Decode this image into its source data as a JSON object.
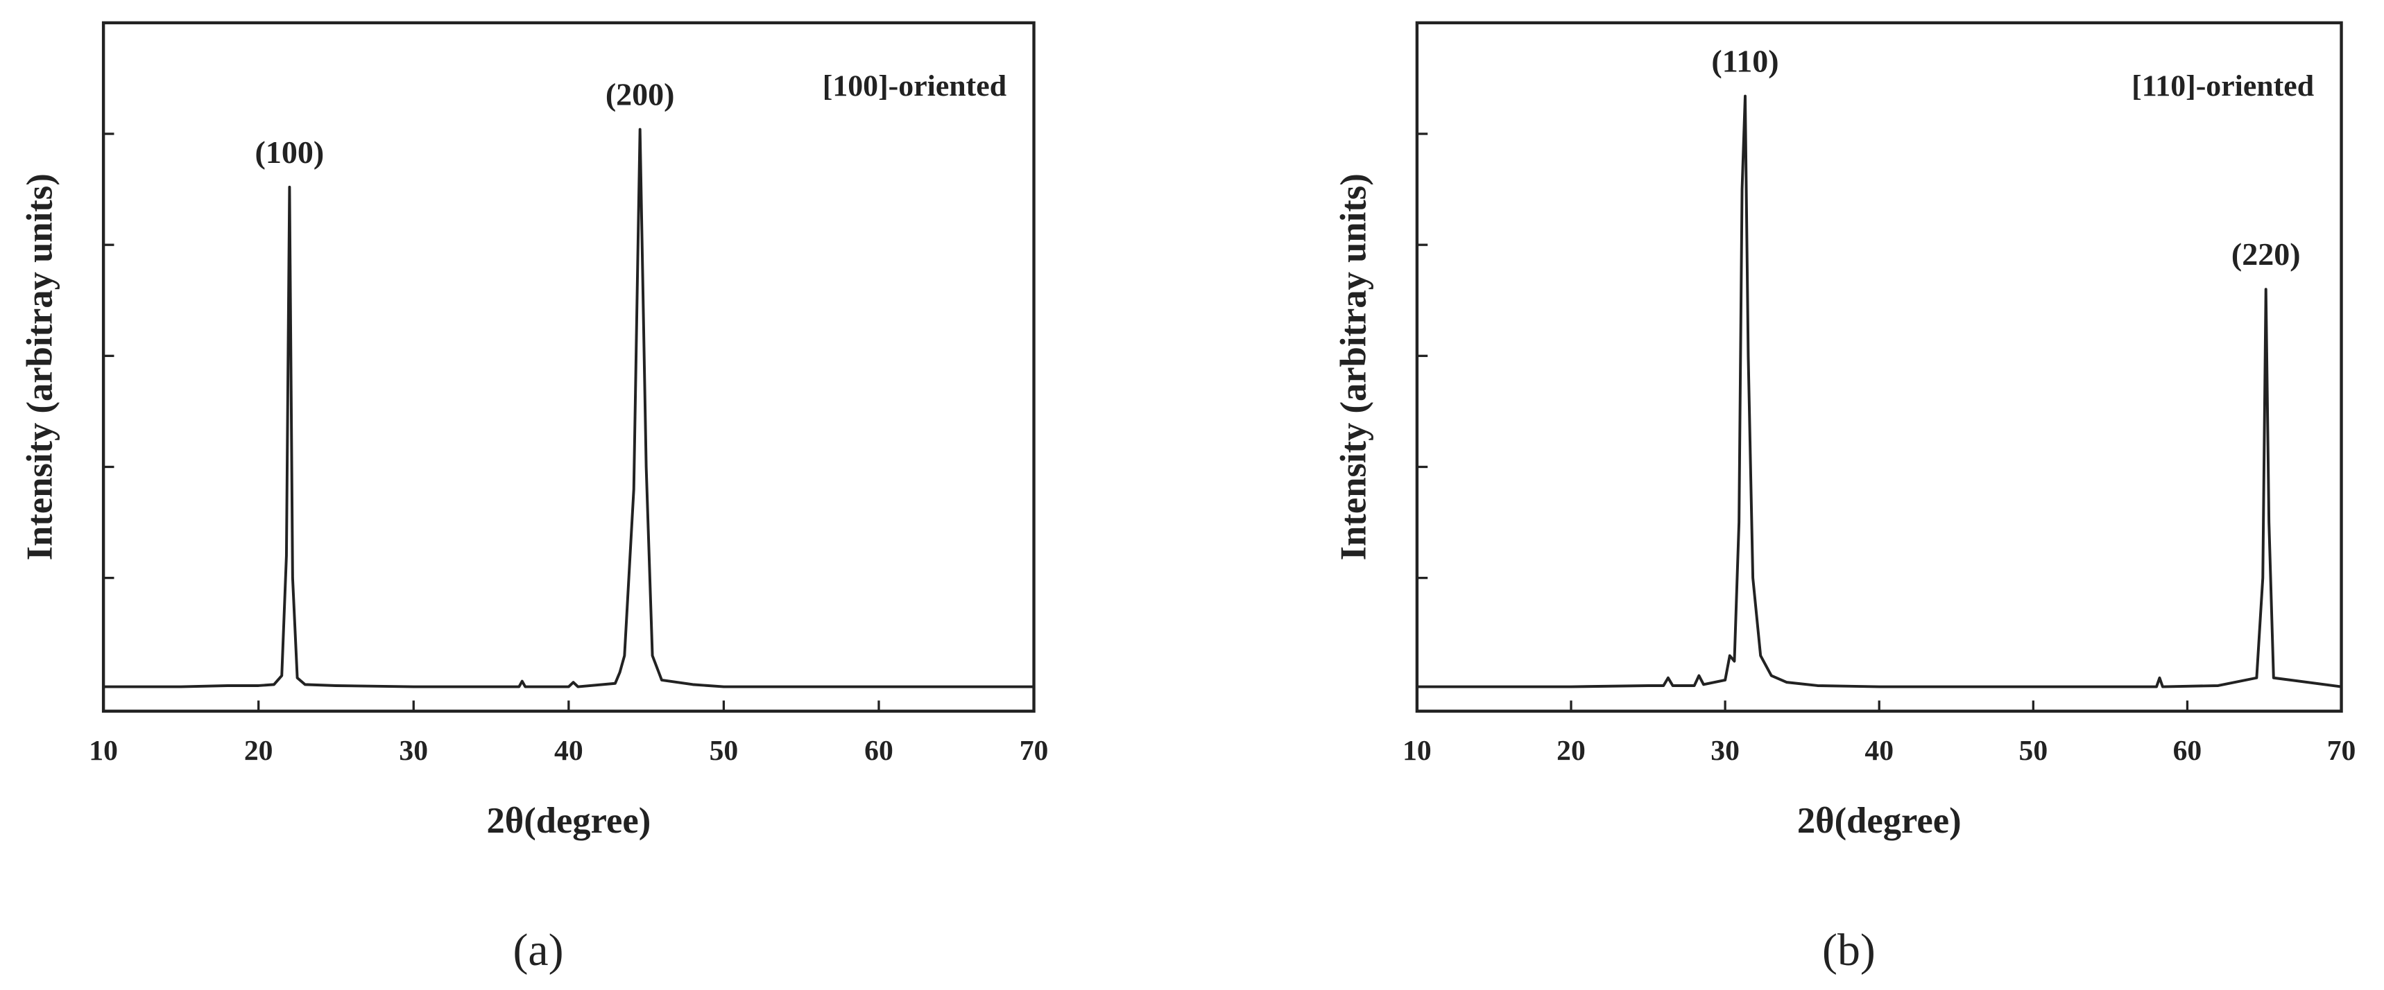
{
  "chart_data": [
    {
      "type": "line",
      "panel": "(a)",
      "note": "[100]-oriented",
      "note_corner": "upper right",
      "xlabel": "2θ(degree)",
      "ylabel": "Intensity (arbitray units)",
      "color": "#222222",
      "xlim": [
        10,
        70
      ],
      "xticks": [
        10,
        20,
        30,
        40,
        50,
        60,
        70
      ],
      "ylim": [
        -0.2,
        6
      ],
      "yticks": [
        1,
        2,
        3,
        4,
        5
      ],
      "x": [
        10,
        15,
        18,
        20,
        21,
        21.5,
        21.8,
        22.0,
        22.2,
        22.5,
        23,
        25,
        30,
        35,
        36.8,
        37,
        37.2,
        40,
        40.3,
        40.6,
        43,
        43.3,
        43.6,
        44.2,
        44.6,
        45.0,
        45.4,
        46,
        48,
        50,
        55,
        60,
        65,
        70
      ],
      "values": [
        0.02,
        0.02,
        0.03,
        0.03,
        0.04,
        0.12,
        1.2,
        4.52,
        1.0,
        0.1,
        0.04,
        0.03,
        0.02,
        0.02,
        0.02,
        0.07,
        0.02,
        0.02,
        0.06,
        0.02,
        0.05,
        0.15,
        0.3,
        1.8,
        5.04,
        2.0,
        0.3,
        0.08,
        0.04,
        0.02,
        0.02,
        0.02,
        0.02,
        0.02
      ],
      "annotations": [
        {
          "text": "(100)",
          "x": 22.0,
          "y": 4.52
        },
        {
          "text": "(200)",
          "x": 44.6,
          "y": 5.04
        }
      ]
    },
    {
      "type": "line",
      "panel": "(b)",
      "note": "[110]-oriented",
      "note_corner": "upper right",
      "xlabel": "2θ(degree)",
      "ylabel": "Intensity (arbitray units)",
      "color": "#222222",
      "xlim": [
        10,
        70
      ],
      "xticks": [
        10,
        20,
        30,
        40,
        50,
        60,
        70
      ],
      "ylim": [
        -0.2,
        6
      ],
      "yticks": [
        1,
        2,
        3,
        4,
        5
      ],
      "x": [
        10,
        20,
        25,
        26,
        26.3,
        26.6,
        28,
        28.3,
        28.6,
        30,
        30.3,
        30.6,
        30.9,
        31.1,
        31.3,
        31.5,
        31.8,
        32.3,
        33,
        34,
        36,
        40,
        50,
        58,
        58.2,
        58.4,
        62,
        64.5,
        64.9,
        65.1,
        65.3,
        65.6,
        70
      ],
      "values": [
        0.02,
        0.02,
        0.03,
        0.03,
        0.1,
        0.03,
        0.03,
        0.12,
        0.04,
        0.08,
        0.3,
        0.25,
        1.5,
        4.5,
        5.34,
        3.0,
        1.0,
        0.3,
        0.12,
        0.06,
        0.03,
        0.02,
        0.02,
        0.02,
        0.1,
        0.02,
        0.03,
        0.1,
        1.0,
        3.6,
        1.5,
        0.1,
        0.02
      ],
      "annotations": [
        {
          "text": "(110)",
          "x": 31.3,
          "y": 5.34
        },
        {
          "text": "(220)",
          "x": 65.1,
          "y": 3.6
        }
      ]
    }
  ]
}
